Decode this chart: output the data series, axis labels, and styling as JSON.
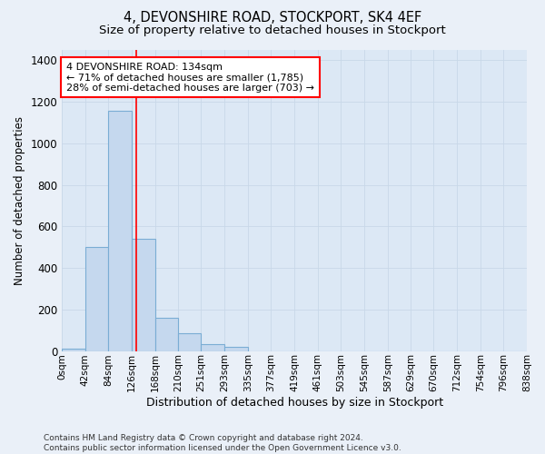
{
  "title1": "4, DEVONSHIRE ROAD, STOCKPORT, SK4 4EF",
  "title2": "Size of property relative to detached houses in Stockport",
  "xlabel": "Distribution of detached houses by size in Stockport",
  "ylabel": "Number of detached properties",
  "bar_left_edges": [
    0,
    42,
    84,
    126,
    168,
    210,
    251,
    293,
    335,
    377,
    419,
    461,
    503,
    545,
    587,
    629,
    670,
    712,
    754,
    796
  ],
  "bar_widths": [
    42,
    42,
    42,
    42,
    42,
    41,
    42,
    42,
    42,
    42,
    42,
    42,
    42,
    42,
    42,
    41,
    42,
    42,
    42,
    42
  ],
  "bar_heights": [
    10,
    500,
    1155,
    540,
    160,
    85,
    35,
    20,
    0,
    0,
    0,
    0,
    0,
    0,
    0,
    0,
    0,
    0,
    0,
    0
  ],
  "bar_color": "#c5d8ee",
  "bar_edgecolor": "#7aadd4",
  "bar_linewidth": 0.8,
  "grid_color": "#c8d8e8",
  "background_color": "#eaf0f8",
  "plot_bg_color": "#dce8f5",
  "red_line_x": 134,
  "annotation_text": "4 DEVONSHIRE ROAD: 134sqm\n← 71% of detached houses are smaller (1,785)\n28% of semi-detached houses are larger (703) →",
  "annotation_box_color": "white",
  "annotation_box_edgecolor": "red",
  "ylim": [
    0,
    1450
  ],
  "xlim": [
    0,
    838
  ],
  "tick_labels": [
    "0sqm",
    "42sqm",
    "84sqm",
    "126sqm",
    "168sqm",
    "210sqm",
    "251sqm",
    "293sqm",
    "335sqm",
    "377sqm",
    "419sqm",
    "461sqm",
    "503sqm",
    "545sqm",
    "587sqm",
    "629sqm",
    "670sqm",
    "712sqm",
    "754sqm",
    "796sqm",
    "838sqm"
  ],
  "tick_positions": [
    0,
    42,
    84,
    126,
    168,
    210,
    251,
    293,
    335,
    377,
    419,
    461,
    503,
    545,
    587,
    629,
    670,
    712,
    754,
    796,
    838
  ],
  "footer_text": "Contains HM Land Registry data © Crown copyright and database right 2024.\nContains public sector information licensed under the Open Government Licence v3.0.",
  "title1_fontsize": 10.5,
  "title2_fontsize": 9.5,
  "xlabel_fontsize": 9,
  "ylabel_fontsize": 8.5,
  "tick_fontsize": 7.5,
  "annotation_fontsize": 8,
  "footer_fontsize": 6.5
}
